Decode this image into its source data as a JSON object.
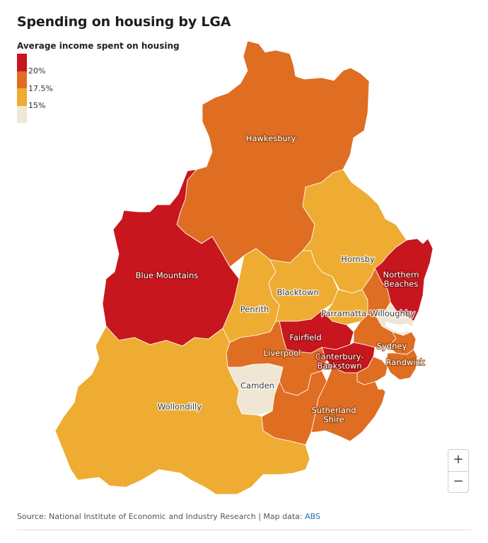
{
  "header": {
    "title": "Spending on housing by LGA"
  },
  "legend": {
    "title": "Average income spent on housing",
    "ticks": [
      "20%",
      "17.5%",
      "15%"
    ],
    "colors": [
      "#c7161d",
      "#df6d22",
      "#eeac33",
      "#efe7d3"
    ]
  },
  "regions": [
    {
      "name": "Hawkesbury",
      "label": "Hawkesbury",
      "color": "#df6d22"
    },
    {
      "name": "Blue Mountains",
      "label": "Blue Mountains",
      "color": "#c7161d"
    },
    {
      "name": "Wollondilly",
      "label": "Wollondilly",
      "color": "#eeac33"
    },
    {
      "name": "Hornsby",
      "label": "Hornsby",
      "color": "#eeac33"
    },
    {
      "name": "Northern Beaches",
      "label": "Northern Beaches",
      "color": "#c7161d"
    },
    {
      "name": "Blacktown",
      "label": "Blacktown",
      "color": "#eeac33"
    },
    {
      "name": "Penrith",
      "label": "Penrith",
      "color": "#eeac33"
    },
    {
      "name": "Parramatta",
      "label": "Parramatta",
      "color": "#eeac33"
    },
    {
      "name": "Willoughby",
      "label": "Willoughby",
      "color": "#efe7d3"
    },
    {
      "name": "Fairfield",
      "label": "Fairfield",
      "color": "#c7161d"
    },
    {
      "name": "Liverpool",
      "label": "Liverpool",
      "color": "#df6d22"
    },
    {
      "name": "Canterbury-Bankstown",
      "label": "Canterbury-Bankstown",
      "color": "#c7161d"
    },
    {
      "name": "Sydney",
      "label": "Sydney",
      "color": "#df6d22"
    },
    {
      "name": "Randwick",
      "label": "Randwick",
      "color": "#df6d22"
    },
    {
      "name": "Camden",
      "label": "Camden",
      "color": "#efe7d3"
    },
    {
      "name": "Sutherland Shire",
      "label": "Sutherland Shire",
      "color": "#df6d22"
    }
  ],
  "controls": {
    "zoom_in": "+",
    "zoom_out": "−"
  },
  "footer": {
    "source_text": "Source: National Institute of Economic and Industry Research | Map data: ",
    "link_text": "ABS"
  }
}
